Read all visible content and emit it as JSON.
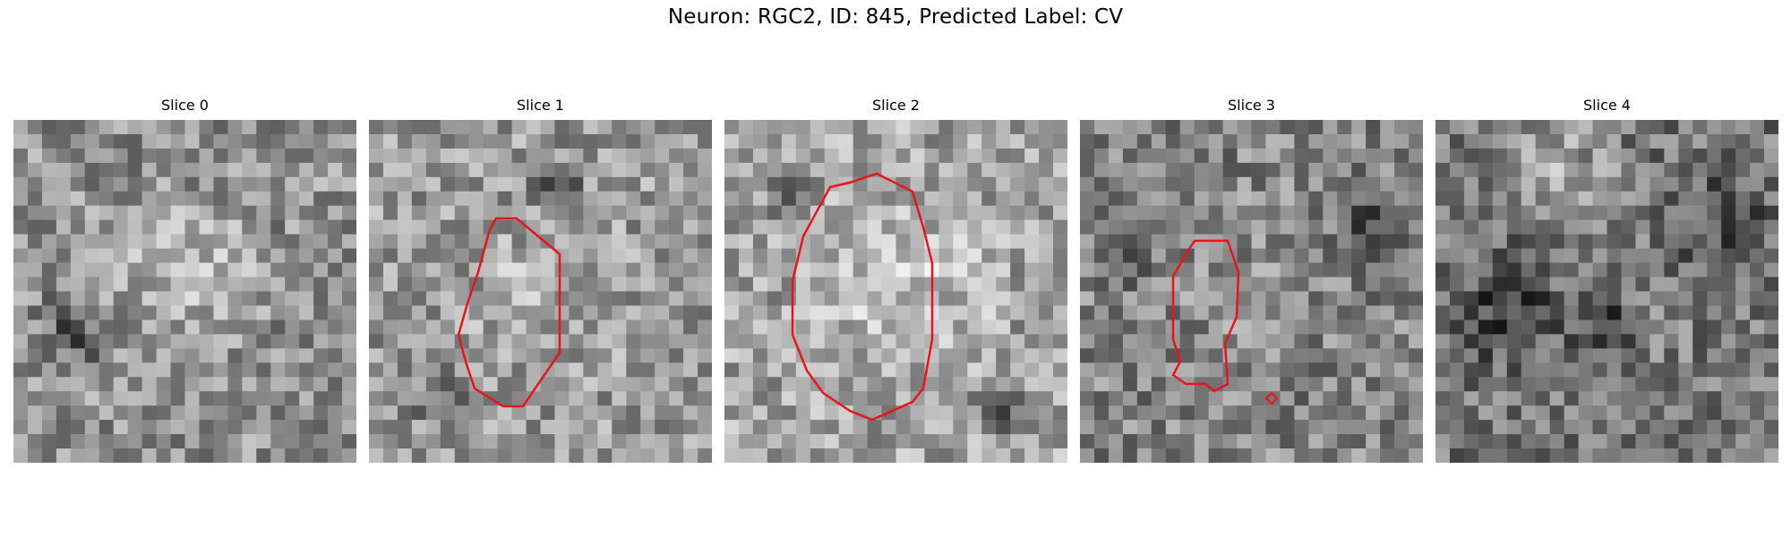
{
  "figure": {
    "title": "Neuron: RGC2, ID: 845, Predicted Label: CV",
    "grid_size": 24,
    "contour_color": "#e8141c"
  },
  "panels": [
    {
      "title": "Slice 0",
      "has_contour": false,
      "seed": 11,
      "center_brightness": 0.05
    },
    {
      "title": "Slice 1",
      "has_contour": true,
      "seed": 23,
      "center_brightness": 0.08
    },
    {
      "title": "Slice 2",
      "has_contour": true,
      "seed": 37,
      "center_brightness": 0.12
    },
    {
      "title": "Slice 3",
      "has_contour": true,
      "seed": 51,
      "center_brightness": 0.0
    },
    {
      "title": "Slice 4",
      "has_contour": false,
      "seed": 73,
      "center_brightness": -0.05
    }
  ]
}
